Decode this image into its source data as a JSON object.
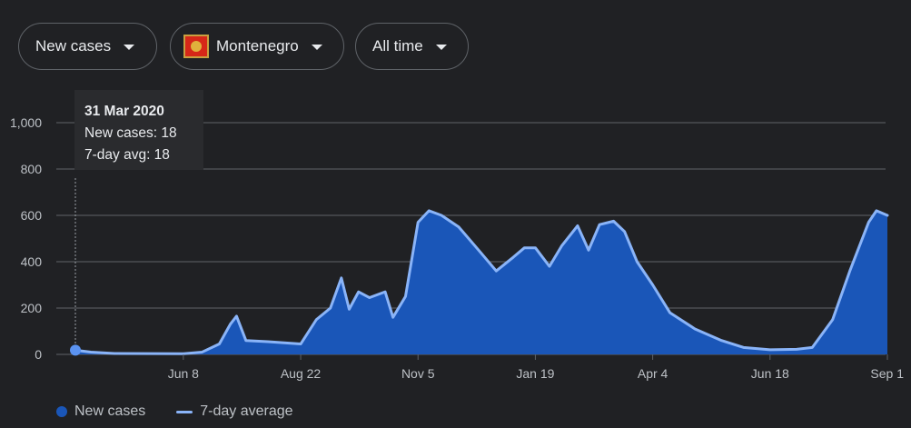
{
  "filters": {
    "metric": "New cases",
    "country": "Montenegro",
    "range": "All time"
  },
  "tooltip": {
    "date": "31 Mar 2020",
    "new_cases": "New cases: 18",
    "avg": "7-day avg: 18"
  },
  "legend": {
    "series1": "New cases",
    "series2": "7-day average"
  },
  "colors": {
    "bars": "#1a56b8",
    "line": "#8ab4f8",
    "grid": "#5f6368",
    "background": "#202124"
  },
  "icons": {
    "dropdown": "caret-down-icon",
    "flag": "montenegro-flag-icon"
  },
  "chart_data": {
    "type": "area",
    "y_ticks": [
      "0",
      "200",
      "400",
      "600",
      "800",
      "1,000"
    ],
    "ylim": [
      0,
      1000
    ],
    "x_ticks": [
      "Jun 8",
      "Aug 22",
      "Nov 5",
      "Jan 19",
      "Apr 4",
      "Jun 18",
      "Sep 1"
    ],
    "legend_position": "bottom-left",
    "grid": true,
    "series": [
      {
        "name": "7-day average",
        "points": [
          [
            "31 Mar 2020",
            18
          ],
          [
            "10 Apr 2020",
            10
          ],
          [
            "25 Apr 2020",
            4
          ],
          [
            "8 Jun 2020",
            3
          ],
          [
            "20 Jun 2020",
            10
          ],
          [
            "1 Jul 2020",
            45
          ],
          [
            "8 Jul 2020",
            130
          ],
          [
            "12 Jul 2020",
            165
          ],
          [
            "18 Jul 2020",
            60
          ],
          [
            "1 Aug 2020",
            55
          ],
          [
            "22 Aug 2020",
            45
          ],
          [
            "1 Sep 2020",
            150
          ],
          [
            "10 Sep 2020",
            200
          ],
          [
            "17 Sep 2020",
            330
          ],
          [
            "22 Sep 2020",
            195
          ],
          [
            "28 Sep 2020",
            270
          ],
          [
            "5 Oct 2020",
            245
          ],
          [
            "15 Oct 2020",
            270
          ],
          [
            "20 Oct 2020",
            160
          ],
          [
            "28 Oct 2020",
            250
          ],
          [
            "5 Nov 2020",
            570
          ],
          [
            "12 Nov 2020",
            620
          ],
          [
            "20 Nov 2020",
            600
          ],
          [
            "1 Dec 2020",
            550
          ],
          [
            "15 Dec 2020",
            440
          ],
          [
            "25 Dec 2020",
            360
          ],
          [
            "5 Jan 2021",
            420
          ],
          [
            "12 Jan 2021",
            460
          ],
          [
            "19 Jan 2021",
            460
          ],
          [
            "28 Jan 2021",
            380
          ],
          [
            "5 Feb 2021",
            470
          ],
          [
            "15 Feb 2021",
            555
          ],
          [
            "22 Feb 2021",
            450
          ],
          [
            "1 Mar 2021",
            560
          ],
          [
            "10 Mar 2021",
            575
          ],
          [
            "17 Mar 2021",
            530
          ],
          [
            "25 Mar 2021",
            400
          ],
          [
            "4 Apr 2021",
            300
          ],
          [
            "15 Apr 2021",
            180
          ],
          [
            "1 May 2021",
            110
          ],
          [
            "18 May 2021",
            60
          ],
          [
            "1 Jun 2021",
            30
          ],
          [
            "18 Jun 2021",
            20
          ],
          [
            "5 Jul 2021",
            22
          ],
          [
            "15 Jul 2021",
            30
          ],
          [
            "28 Jul 2021",
            150
          ],
          [
            "8 Aug 2021",
            360
          ],
          [
            "20 Aug 2021",
            570
          ],
          [
            "25 Aug 2021",
            620
          ],
          [
            "1 Sep 2021",
            600
          ]
        ]
      }
    ]
  }
}
